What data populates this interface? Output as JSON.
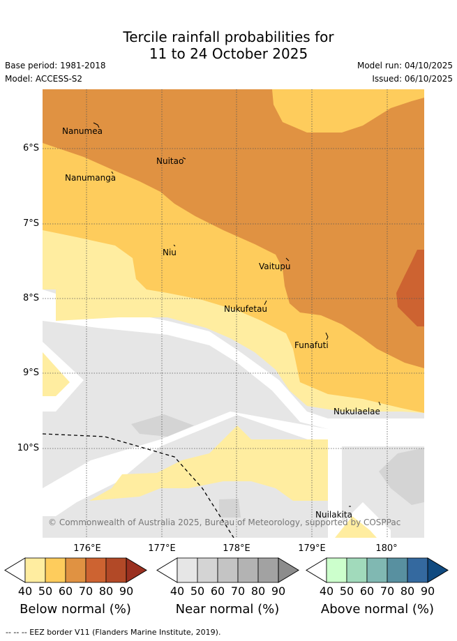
{
  "header": {
    "title_line1": "Tercile rainfall probabilities for",
    "title_line2": "11 to 24 October 2025",
    "base_period": "Base period: 1981-2018",
    "model": "Model: ACCESS-S2",
    "model_run": "Model run: 04/10/2025",
    "issued": "Issued: 06/10/2025"
  },
  "map": {
    "lat_labels": [
      "6°S",
      "7°S",
      "8°S",
      "9°S",
      "10°S"
    ],
    "lon_labels": [
      "176°E",
      "177°E",
      "178°E",
      "179°E",
      "180°"
    ],
    "places": [
      "Nanumea",
      "Nuitao",
      "Nanumanga",
      "Niu",
      "Vaitupu",
      "Nukufetau",
      "Funafuti",
      "Nukulaelae",
      "Nuilakita"
    ],
    "copyright": "© Commonwealth of Australia 2025, Bureau of Meteorology, supported by COSPPac"
  },
  "legend": {
    "below": {
      "title": "Below normal (%)",
      "ticks": [
        "40",
        "50",
        "60",
        "70",
        "80",
        "90"
      ],
      "colors": [
        "#ffeda0",
        "#fecc5c",
        "#e09242",
        "#cd6331",
        "#b24927",
        "#9a3020"
      ]
    },
    "near": {
      "title": "Near normal (%)",
      "ticks": [
        "40",
        "50",
        "60",
        "70",
        "80",
        "90"
      ],
      "colors": [
        "#e6e6e6",
        "#d4d4d4",
        "#c4c4c4",
        "#b3b3b3",
        "#a2a2a2",
        "#8c8c8c"
      ]
    },
    "above": {
      "title": "Above normal (%)",
      "ticks": [
        "40",
        "50",
        "60",
        "70",
        "80",
        "90"
      ],
      "colors": [
        "#ccffcc",
        "#a1dabb",
        "#80b8b2",
        "#5890a0",
        "#34699f",
        "#104a80"
      ]
    }
  },
  "footnote": "--  --  -- EEZ border V11 (Flanders Marine Institute, 2019)."
}
